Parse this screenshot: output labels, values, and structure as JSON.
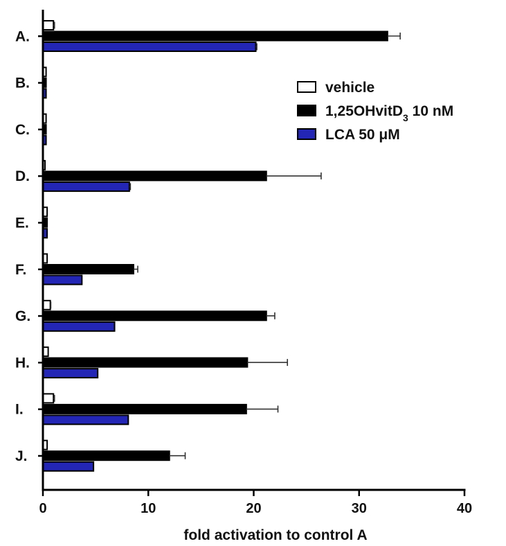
{
  "chart_data": {
    "type": "bar",
    "orientation": "horizontal",
    "categories": [
      "A.",
      "B.",
      "C.",
      "D.",
      "E.",
      "F.",
      "G.",
      "H.",
      "I.",
      "J."
    ],
    "series": [
      {
        "name": "vehicle",
        "color": "#ffffff",
        "stroke": "#000000",
        "values": [
          1.0,
          0.3,
          0.3,
          0.2,
          0.4,
          0.4,
          0.7,
          0.5,
          1.0,
          0.4
        ],
        "errors": [
          0.1,
          0,
          0,
          0,
          0,
          0,
          0.05,
          0,
          0.1,
          0
        ]
      },
      {
        "name": "1,25OHvitD",
        "name_sub": "3",
        "name_suffix": " 10 nM",
        "color": "#000000",
        "stroke": "#000000",
        "values": [
          32.7,
          0.3,
          0.3,
          21.2,
          0.4,
          8.6,
          21.2,
          19.4,
          19.3,
          12.0
        ],
        "errors": [
          1.2,
          0,
          0,
          5.2,
          0,
          0.4,
          0.8,
          3.8,
          3.0,
          1.5
        ]
      },
      {
        "name": "LCA  50 μM",
        "color": "#2326b5",
        "stroke": "#000000",
        "values": [
          20.2,
          0.3,
          0.3,
          8.2,
          0.4,
          3.7,
          6.8,
          5.2,
          8.1,
          4.8
        ],
        "errors": [
          0.1,
          0,
          0,
          0.1,
          0,
          0,
          0,
          0,
          0,
          0
        ]
      }
    ],
    "xlabel": "fold activation to control A",
    "xlim": [
      0,
      40
    ],
    "xticks": [
      "0",
      "10",
      "20",
      "30",
      "40"
    ],
    "legend": "top-right",
    "grid": false
  }
}
